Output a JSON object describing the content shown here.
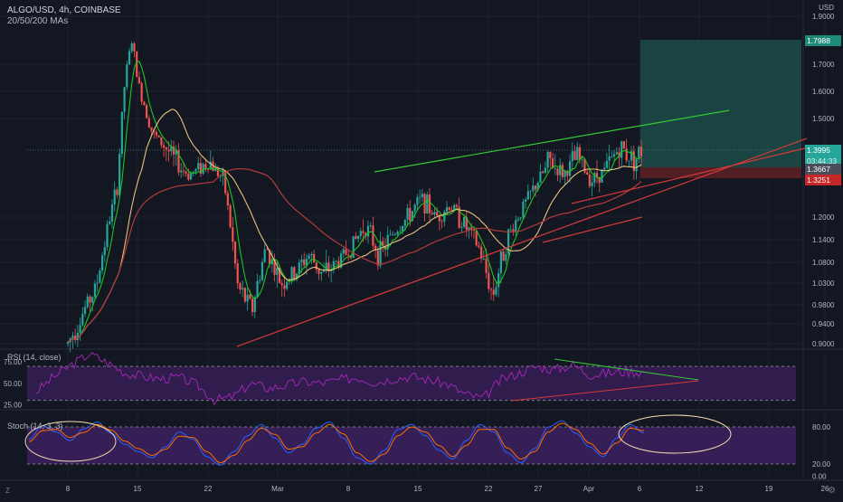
{
  "header": {
    "symbol": "ALGO/USD, 4h, COINBASE",
    "indicator": "20/50/200 MAs"
  },
  "axis": {
    "currency": "USD"
  },
  "price_tags": {
    "target": "1.7988",
    "current": "1.3995",
    "countdown": "03:44:33",
    "entry": "1.3667",
    "stop": "1.3251"
  },
  "panes": {
    "rsi_label": "RSI (14, close)",
    "stoch_label": "Stoch (14, 3, 3)"
  },
  "corner": {
    "left": "Z"
  },
  "colors": {
    "background": "#131722",
    "grid": "#1e222d",
    "candle_up": "#26a69a",
    "candle_down": "#ef5350",
    "ma20": "#1ec41e",
    "ma50": "#e8c07d",
    "ma200": "#b23b3b",
    "trend_green": "#34c934",
    "trend_red": "#d43a3a",
    "rsi_line": "#9c27b0",
    "stoch_k": "#2962ff",
    "stoch_d": "#ff6d00",
    "band_fill": "#3b1f5c",
    "target_zone": "#1b4c46",
    "stop_zone": "#5c1f26"
  },
  "chart_data": [
    {
      "type": "candlestick",
      "title": "ALGO/USD, 4h, COINBASE",
      "ylabel": "USD",
      "ylim": [
        0.89,
        1.92
      ],
      "y_ticks": [
        "1.9000",
        "1.7000",
        "1.6000",
        "1.5000",
        "1.2000",
        "1.1400",
        "1.0800",
        "1.0300",
        "0.9800",
        "0.9400",
        "0.9000"
      ],
      "x_ticks": [
        "8",
        "15",
        "22",
        "Mar",
        "8",
        "15",
        "22",
        "27",
        "Apr",
        "6",
        "12",
        "19",
        "26"
      ],
      "series_overlays": [
        "MA 20",
        "MA 50",
        "MA 200"
      ],
      "close_path": [
        [
          0,
          0.9
        ],
        [
          4,
          1.02
        ],
        [
          7,
          1.3
        ],
        [
          8,
          1.62
        ],
        [
          9,
          1.8
        ],
        [
          10,
          1.62
        ],
        [
          12,
          1.45
        ],
        [
          15,
          1.38
        ],
        [
          17,
          1.34
        ],
        [
          20,
          1.38
        ],
        [
          22,
          1.32
        ],
        [
          24,
          1.02
        ],
        [
          26,
          0.97
        ],
        [
          28,
          1.12
        ],
        [
          30,
          1.03
        ],
        [
          32,
          1.05
        ],
        [
          34,
          1.1
        ],
        [
          36,
          1.05
        ],
        [
          38,
          1.08
        ],
        [
          40,
          1.12
        ],
        [
          42,
          1.18
        ],
        [
          44,
          1.1
        ],
        [
          46,
          1.16
        ],
        [
          48,
          1.2
        ],
        [
          50,
          1.26
        ],
        [
          52,
          1.2
        ],
        [
          54,
          1.24
        ],
        [
          56,
          1.18
        ],
        [
          58,
          1.12
        ],
        [
          60,
          1.0
        ],
        [
          62,
          1.14
        ],
        [
          64,
          1.22
        ],
        [
          66,
          1.3
        ],
        [
          68,
          1.38
        ],
        [
          70,
          1.34
        ],
        [
          72,
          1.39
        ],
        [
          74,
          1.32
        ],
        [
          76,
          1.36
        ],
        [
          78,
          1.41
        ],
        [
          80,
          1.38
        ],
        [
          81,
          1.3995
        ]
      ],
      "position": {
        "target": 1.7988,
        "entry": 1.3667,
        "stop": 1.3251
      },
      "annotations": [
        "upper green trendline",
        "lower red trendlines",
        "long position box"
      ]
    },
    {
      "type": "line",
      "title": "RSI (14, close)",
      "ylim": [
        20,
        88
      ],
      "y_ticks": [
        "75.00",
        "50.00",
        "25.00"
      ],
      "bands": [
        30,
        70
      ],
      "values": [
        40,
        58,
        72,
        85,
        74,
        62,
        58,
        55,
        57,
        48,
        30,
        34,
        50,
        44,
        48,
        52,
        50,
        54,
        57,
        51,
        56,
        58,
        54,
        49,
        37,
        32,
        54,
        62,
        70,
        66,
        72,
        60,
        62,
        64,
        63
      ],
      "annotations": [
        "descending green line",
        "ascending red line"
      ]
    },
    {
      "type": "line",
      "title": "Stoch (14, 3, 3)",
      "ylim": [
        -5,
        105
      ],
      "y_ticks": [
        "80.00",
        "20.00",
        "0.00"
      ],
      "bands": [
        20,
        80
      ],
      "series": [
        {
          "name": "%K",
          "values": [
            60,
            82,
            72,
            58,
            77,
            88,
            70,
            52,
            40,
            30,
            48,
            72,
            60,
            32,
            18,
            40,
            66,
            84,
            62,
            38,
            52,
            78,
            88,
            62,
            30,
            20,
            42,
            76,
            84,
            66,
            42,
            28,
            58,
            84,
            72,
            38,
            22,
            45,
            80,
            90,
            70,
            48,
            32,
            62,
            84,
            70
          ]
        },
        {
          "name": "%D",
          "values": [
            56,
            74,
            76,
            63,
            71,
            84,
            75,
            57,
            45,
            34,
            44,
            65,
            63,
            40,
            22,
            34,
            58,
            78,
            68,
            44,
            48,
            70,
            84,
            69,
            38,
            24,
            36,
            66,
            80,
            72,
            50,
            32,
            50,
            76,
            76,
            46,
            28,
            40,
            72,
            86,
            76,
            54,
            36,
            54,
            78,
            74
          ]
        }
      ],
      "annotations": [
        "highlight ellipse left",
        "highlight ellipse right"
      ]
    }
  ]
}
